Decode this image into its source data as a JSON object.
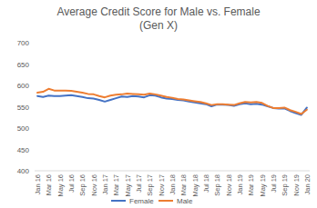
{
  "chart_data": {
    "type": "line",
    "title": "Average Credit Score for Male vs. Female",
    "subtitle": "(Gen X)",
    "categories": [
      "Jan 16",
      null,
      "Mar 16",
      null,
      "May 16",
      null,
      "Jul 16",
      null,
      "Sep 16",
      null,
      "Nov 16",
      null,
      "Jan 17",
      null,
      "Mar 17",
      null,
      "May 17",
      null,
      "Jul 17",
      null,
      "Sep 17",
      null,
      "Nov 17",
      null,
      "Jan 18",
      null,
      "Mar 18",
      null,
      "May 18",
      null,
      "Jul 18",
      null,
      "Sep 18",
      null,
      "Nov 18",
      null,
      "Jan 19",
      null,
      "Mar 19",
      null,
      "May 19",
      null,
      "Jul 19",
      null,
      "Sep 19",
      null,
      "Nov 19",
      null,
      "Jan 20"
    ],
    "series": [
      {
        "name": "Female",
        "color": "#4472c4",
        "values": [
          575,
          573,
          576,
          575,
          575,
          576,
          577,
          575,
          573,
          570,
          569,
          566,
          562,
          566,
          570,
          574,
          573,
          575,
          574,
          572,
          577,
          576,
          572,
          569,
          568,
          566,
          565,
          562,
          560,
          558,
          556,
          551,
          555,
          555,
          554,
          552,
          556,
          558,
          556,
          557,
          555,
          551,
          547,
          546,
          546,
          540,
          535,
          531,
          548
        ]
      },
      {
        "name": "Male",
        "color": "#ed7d31",
        "values": [
          583,
          585,
          592,
          588,
          588,
          588,
          587,
          585,
          583,
          580,
          579,
          575,
          572,
          576,
          578,
          579,
          581,
          580,
          579,
          578,
          581,
          579,
          576,
          573,
          571,
          568,
          567,
          565,
          563,
          561,
          558,
          554,
          556,
          556,
          555,
          554,
          558,
          561,
          560,
          561,
          559,
          552,
          547,
          547,
          548,
          542,
          538,
          533,
          543
        ]
      }
    ],
    "ylim": [
      400,
      700
    ],
    "yticks": [
      400,
      450,
      500,
      550,
      600,
      650,
      700
    ],
    "grid": false,
    "legend": "bottom"
  }
}
